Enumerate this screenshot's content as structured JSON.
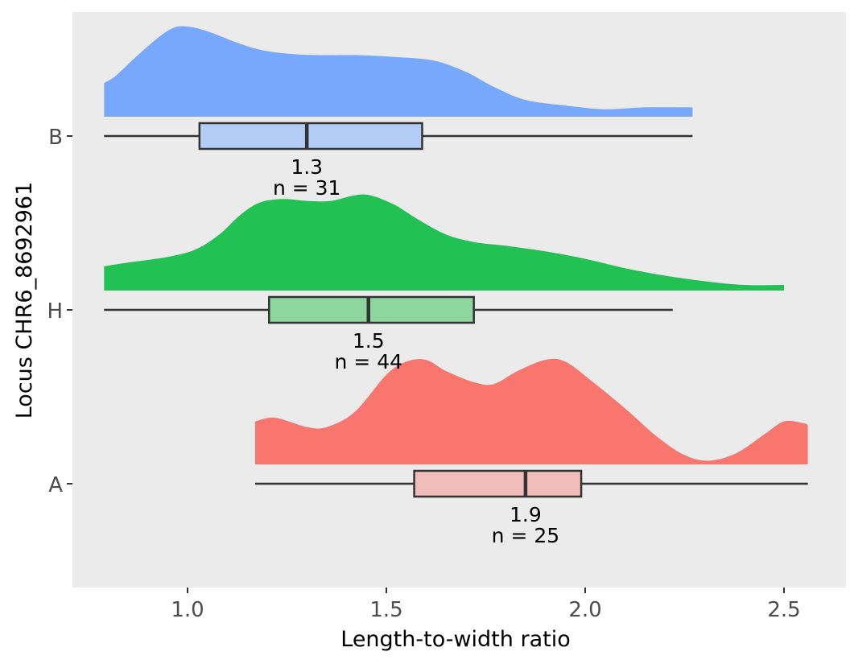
{
  "chart_data": {
    "type": "raincloud",
    "orientation": "horizontal",
    "xlabel": "Length-to-width ratio",
    "ylabel": "Locus CHR6_8692961",
    "xlim": [
      0.7,
      2.57
    ],
    "x_ticks": [
      1.0,
      1.5,
      2.0,
      2.5
    ],
    "x_tick_labels": [
      "1.0",
      "1.5",
      "2.0",
      "2.5"
    ],
    "grid": false,
    "panel_background": "#ebebeb",
    "groups": [
      {
        "category": "A",
        "color": "#f8766d",
        "box_fill": "#f0bdbb",
        "min": 1.17,
        "q1": 1.57,
        "median": 1.85,
        "q3": 1.99,
        "max": 2.56,
        "median_label": "1.9",
        "n_label": "n = 25",
        "density": [
          [
            1.17,
            0.23
          ],
          [
            1.22,
            0.25
          ],
          [
            1.3,
            0.2
          ],
          [
            1.35,
            0.2
          ],
          [
            1.42,
            0.28
          ],
          [
            1.5,
            0.48
          ],
          [
            1.55,
            0.55
          ],
          [
            1.6,
            0.56
          ],
          [
            1.65,
            0.5
          ],
          [
            1.72,
            0.44
          ],
          [
            1.77,
            0.43
          ],
          [
            1.83,
            0.5
          ],
          [
            1.9,
            0.56
          ],
          [
            1.95,
            0.55
          ],
          [
            2.02,
            0.44
          ],
          [
            2.1,
            0.3
          ],
          [
            2.18,
            0.15
          ],
          [
            2.25,
            0.05
          ],
          [
            2.31,
            0.02
          ],
          [
            2.38,
            0.06
          ],
          [
            2.45,
            0.16
          ],
          [
            2.5,
            0.23
          ],
          [
            2.55,
            0.22
          ],
          [
            2.56,
            0.21
          ]
        ]
      },
      {
        "category": "H",
        "color": "#22c153",
        "box_fill": "#8dd79f",
        "min": 0.79,
        "q1": 1.205,
        "median": 1.455,
        "q3": 1.72,
        "max": 2.22,
        "median_label": "1.5",
        "n_label": "n = 44",
        "density": [
          [
            0.79,
            0.13
          ],
          [
            0.85,
            0.15
          ],
          [
            0.95,
            0.18
          ],
          [
            1.02,
            0.22
          ],
          [
            1.08,
            0.3
          ],
          [
            1.13,
            0.4
          ],
          [
            1.18,
            0.47
          ],
          [
            1.24,
            0.49
          ],
          [
            1.3,
            0.48
          ],
          [
            1.36,
            0.48
          ],
          [
            1.42,
            0.51
          ],
          [
            1.46,
            0.51
          ],
          [
            1.52,
            0.46
          ],
          [
            1.58,
            0.38
          ],
          [
            1.65,
            0.3
          ],
          [
            1.72,
            0.26
          ],
          [
            1.8,
            0.24
          ],
          [
            1.9,
            0.21
          ],
          [
            2.0,
            0.17
          ],
          [
            2.1,
            0.12
          ],
          [
            2.2,
            0.08
          ],
          [
            2.3,
            0.05
          ],
          [
            2.4,
            0.03
          ],
          [
            2.5,
            0.03
          ]
        ]
      },
      {
        "category": "B",
        "color": "#78a8fe",
        "box_fill": "#b3ccf5",
        "min": 0.79,
        "q1": 1.03,
        "median": 1.3,
        "q3": 1.59,
        "max": 2.27,
        "median_label": "1.3",
        "n_label": "n = 31",
        "density": [
          [
            0.79,
            0.18
          ],
          [
            0.82,
            0.22
          ],
          [
            0.87,
            0.32
          ],
          [
            0.93,
            0.43
          ],
          [
            0.97,
            0.48
          ],
          [
            1.01,
            0.48
          ],
          [
            1.06,
            0.45
          ],
          [
            1.12,
            0.4
          ],
          [
            1.18,
            0.36
          ],
          [
            1.24,
            0.34
          ],
          [
            1.32,
            0.33
          ],
          [
            1.42,
            0.33
          ],
          [
            1.52,
            0.32
          ],
          [
            1.62,
            0.3
          ],
          [
            1.7,
            0.24
          ],
          [
            1.77,
            0.16
          ],
          [
            1.85,
            0.09
          ],
          [
            1.95,
            0.06
          ],
          [
            2.05,
            0.04
          ],
          [
            2.15,
            0.05
          ],
          [
            2.27,
            0.05
          ]
        ]
      }
    ]
  }
}
